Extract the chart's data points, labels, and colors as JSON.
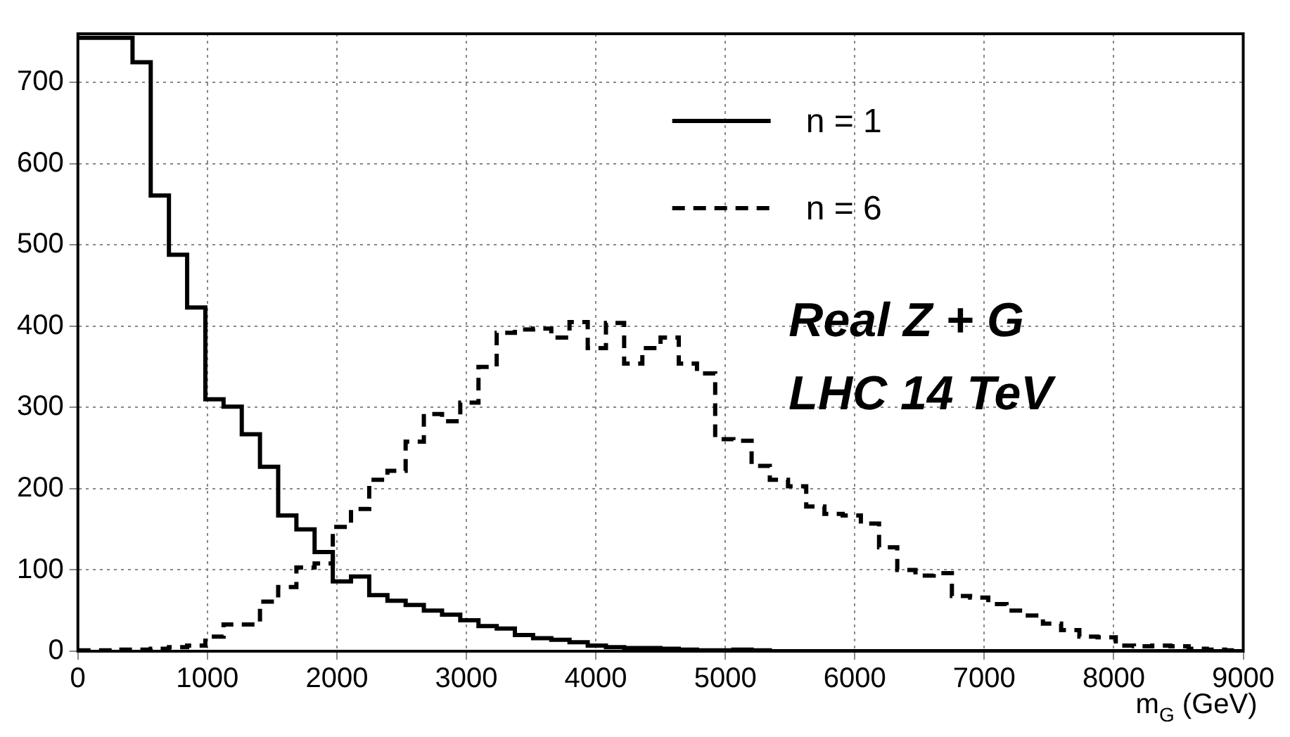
{
  "chart_data": {
    "type": "histogram",
    "xlabel": "m$_{G}$ (GeV)",
    "bins": [
      0,
      140.625,
      281.25,
      421.875,
      562.5,
      703.125,
      843.75,
      984.375,
      1125,
      1265.625,
      1406.25,
      1546.875,
      1687.5,
      1828.125,
      1968.75,
      2109.375,
      2250,
      2390.625,
      2531.25,
      2671.875,
      2812.5,
      2953.125,
      3093.75,
      3234.375,
      3375,
      3515.625,
      3656.25,
      3796.875,
      3937.5,
      4078.125,
      4218.75,
      4359.375,
      4500,
      4640.625,
      4781.25,
      4921.875,
      5062.5,
      5203.125,
      5343.75,
      5484.375,
      5625,
      5765.625,
      5906.25,
      6046.875,
      6187.5,
      6328.125,
      6468.75,
      6609.375,
      6750,
      6890.625,
      7031.25,
      7171.875,
      7312.5,
      7453.125,
      7593.75,
      7734.375,
      7875,
      8015.625,
      8156.25,
      8296.875,
      8437.5,
      8578.125,
      8718.75,
      8859.375,
      9000
    ],
    "series": [
      {
        "name": "n = 1",
        "color": "#000000",
        "line_style": "solid",
        "values": [
          755,
          755,
          755,
          725,
          561,
          488,
          423,
          310,
          301,
          267,
          227,
          167,
          150,
          122,
          86,
          92,
          69,
          62,
          57,
          50,
          45,
          38,
          31,
          28,
          20,
          16,
          14,
          11,
          7,
          5,
          4,
          4,
          3,
          2,
          1,
          1,
          2,
          1,
          0,
          0,
          0,
          0,
          0,
          0,
          0,
          0,
          0,
          0,
          0,
          0,
          0,
          0,
          0,
          0,
          0,
          0,
          0,
          0,
          0,
          0,
          0,
          0,
          0,
          0
        ]
      },
      {
        "name": "n = 6",
        "color": "#000000",
        "line_style": "dashed",
        "values": [
          1,
          1,
          2,
          2,
          3,
          5,
          7,
          18,
          33,
          33,
          61,
          79,
          103,
          108,
          153,
          175,
          211,
          222,
          258,
          292,
          283,
          306,
          350,
          392,
          396,
          397,
          386,
          405,
          373,
          404,
          354,
          373,
          386,
          354,
          342,
          261,
          259,
          228,
          211,
          203,
          178,
          169,
          167,
          157,
          128,
          100,
          93,
          96,
          68,
          66,
          58,
          50,
          44,
          34,
          26,
          18,
          17,
          7,
          6,
          7,
          6,
          3,
          2,
          1
        ]
      }
    ],
    "xlim": [
      0,
      9000
    ],
    "ylim": [
      0,
      760
    ],
    "xticks": [
      0,
      1000,
      2000,
      3000,
      4000,
      5000,
      6000,
      7000,
      8000,
      9000
    ],
    "yticks": [
      0,
      100,
      200,
      300,
      400,
      500,
      600,
      700
    ],
    "grid": true,
    "legend": "top right",
    "annotations": [
      "Real Z + G",
      "LHC 14 TeV"
    ]
  }
}
